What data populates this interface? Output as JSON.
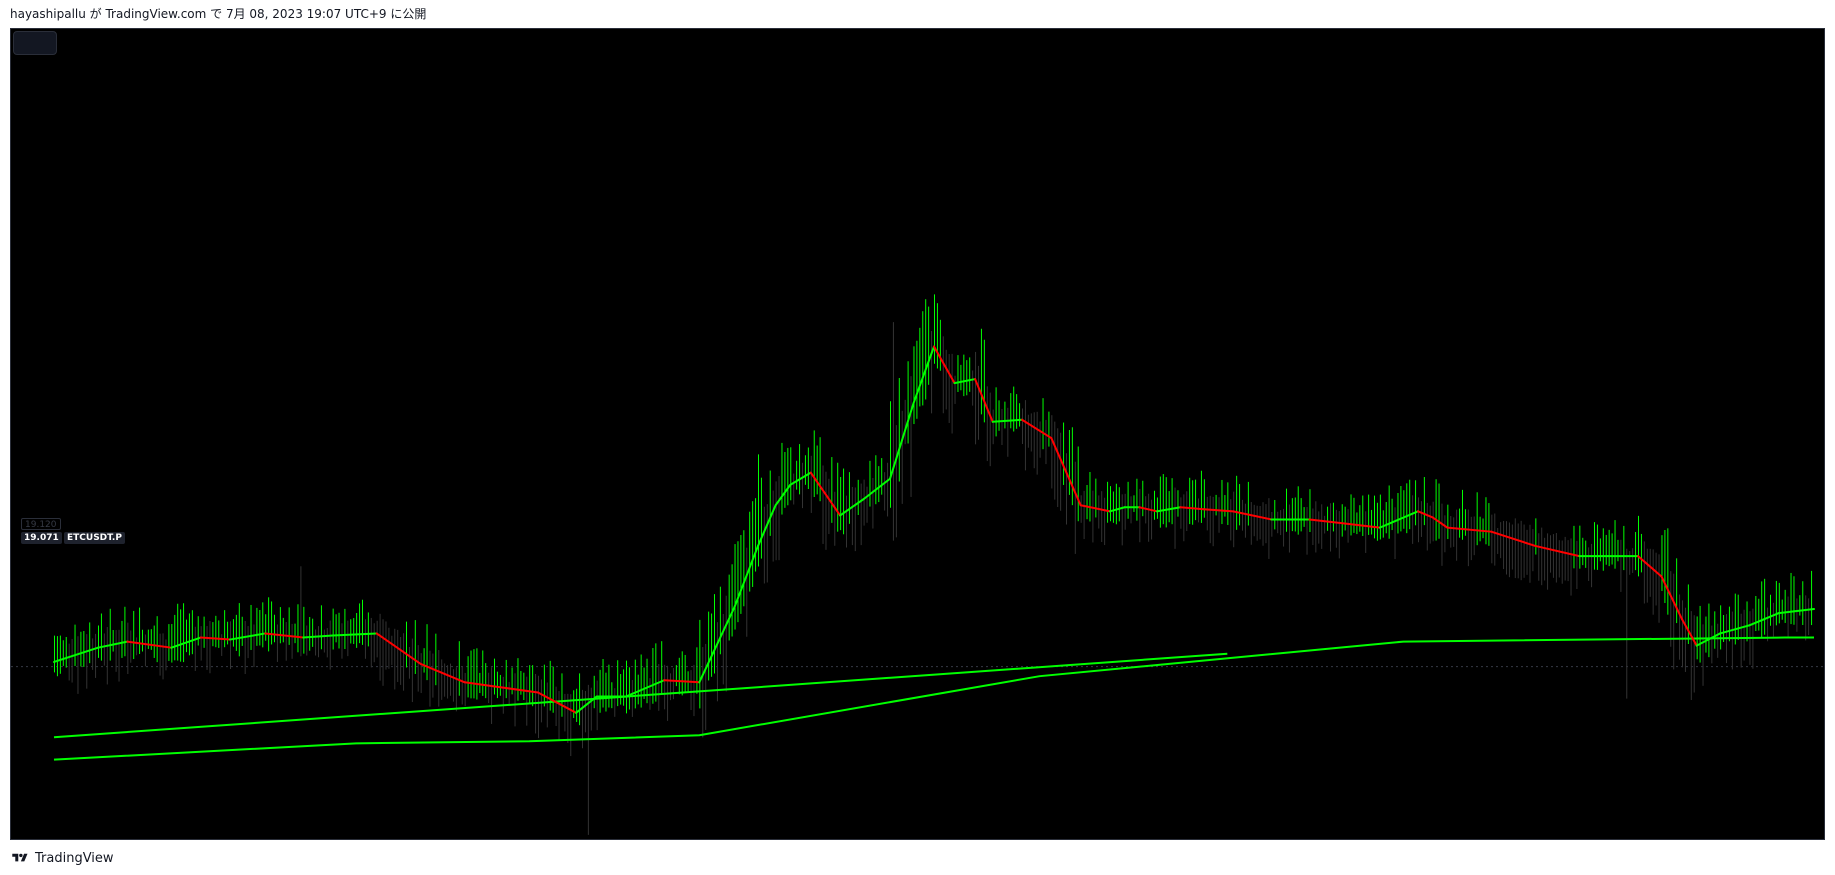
{
  "header": {
    "publish_text": "hayashipallu が TradingView.com で 7月 08, 2023 19:07 UTC+9 に公開"
  },
  "footer": {
    "brand": "TradingView",
    "logo_icon": "tradingview-logo-icon"
  },
  "chart": {
    "previous_close_label": "19.120",
    "price_label": "19.071",
    "symbol_label": "ETCUSDT.P",
    "colors": {
      "background": "#000000",
      "bar_up": "#00ff00",
      "bar_down": "#333333",
      "ma_up": "#00ff00",
      "ma_down": "#ff0000",
      "trend": "#00ff00",
      "last_price_line": "#363a45"
    }
  },
  "chart_data": {
    "type": "line",
    "title": "",
    "xlabel": "",
    "ylabel": "",
    "ylim": [
      10.6,
      50.4
    ],
    "last_price": 19.071,
    "moving_average": {
      "x": [
        0,
        15,
        25,
        40,
        50,
        60,
        72,
        85,
        95,
        110,
        125,
        140,
        150,
        165,
        178,
        185,
        195,
        208,
        220,
        232,
        240,
        246,
        251,
        258,
        268,
        276,
        285,
        293,
        300,
        307,
        314,
        320,
        330,
        340,
        350,
        360,
        365,
        370,
        376,
        384,
        392,
        402,
        415,
        428,
        440,
        452,
        465,
        470,
        475,
        490,
        505,
        520,
        530,
        540,
        548,
        555,
        560,
        568,
        578,
        588,
        600
      ],
      "y": [
        19.3,
        20.0,
        20.3,
        20.0,
        20.5,
        20.4,
        20.7,
        20.5,
        20.6,
        20.7,
        19.2,
        18.3,
        18.1,
        17.8,
        16.8,
        17.6,
        17.6,
        18.4,
        18.3,
        22.0,
        25.0,
        27.0,
        28.0,
        28.6,
        26.5,
        27.3,
        28.3,
        32.0,
        34.8,
        33.0,
        33.2,
        31.1,
        31.2,
        30.3,
        27.0,
        26.7,
        26.9,
        26.9,
        26.7,
        26.9,
        26.8,
        26.7,
        26.3,
        26.3,
        26.1,
        25.9,
        26.7,
        26.4,
        25.9,
        25.7,
        25.0,
        24.5,
        24.5,
        24.5,
        23.5,
        21.4,
        20.1,
        20.7,
        21.1,
        21.7,
        21.9
      ]
    },
    "trendlines": [
      {
        "x": [
          0,
          400
        ],
        "y": [
          15.6,
          19.7
        ]
      },
      {
        "x": [
          0,
          103,
          162,
          220,
          336,
          460,
          590,
          600
        ],
        "y": [
          14.5,
          15.3,
          15.4,
          15.7,
          18.6,
          20.3,
          20.5,
          20.5
        ]
      }
    ]
  }
}
